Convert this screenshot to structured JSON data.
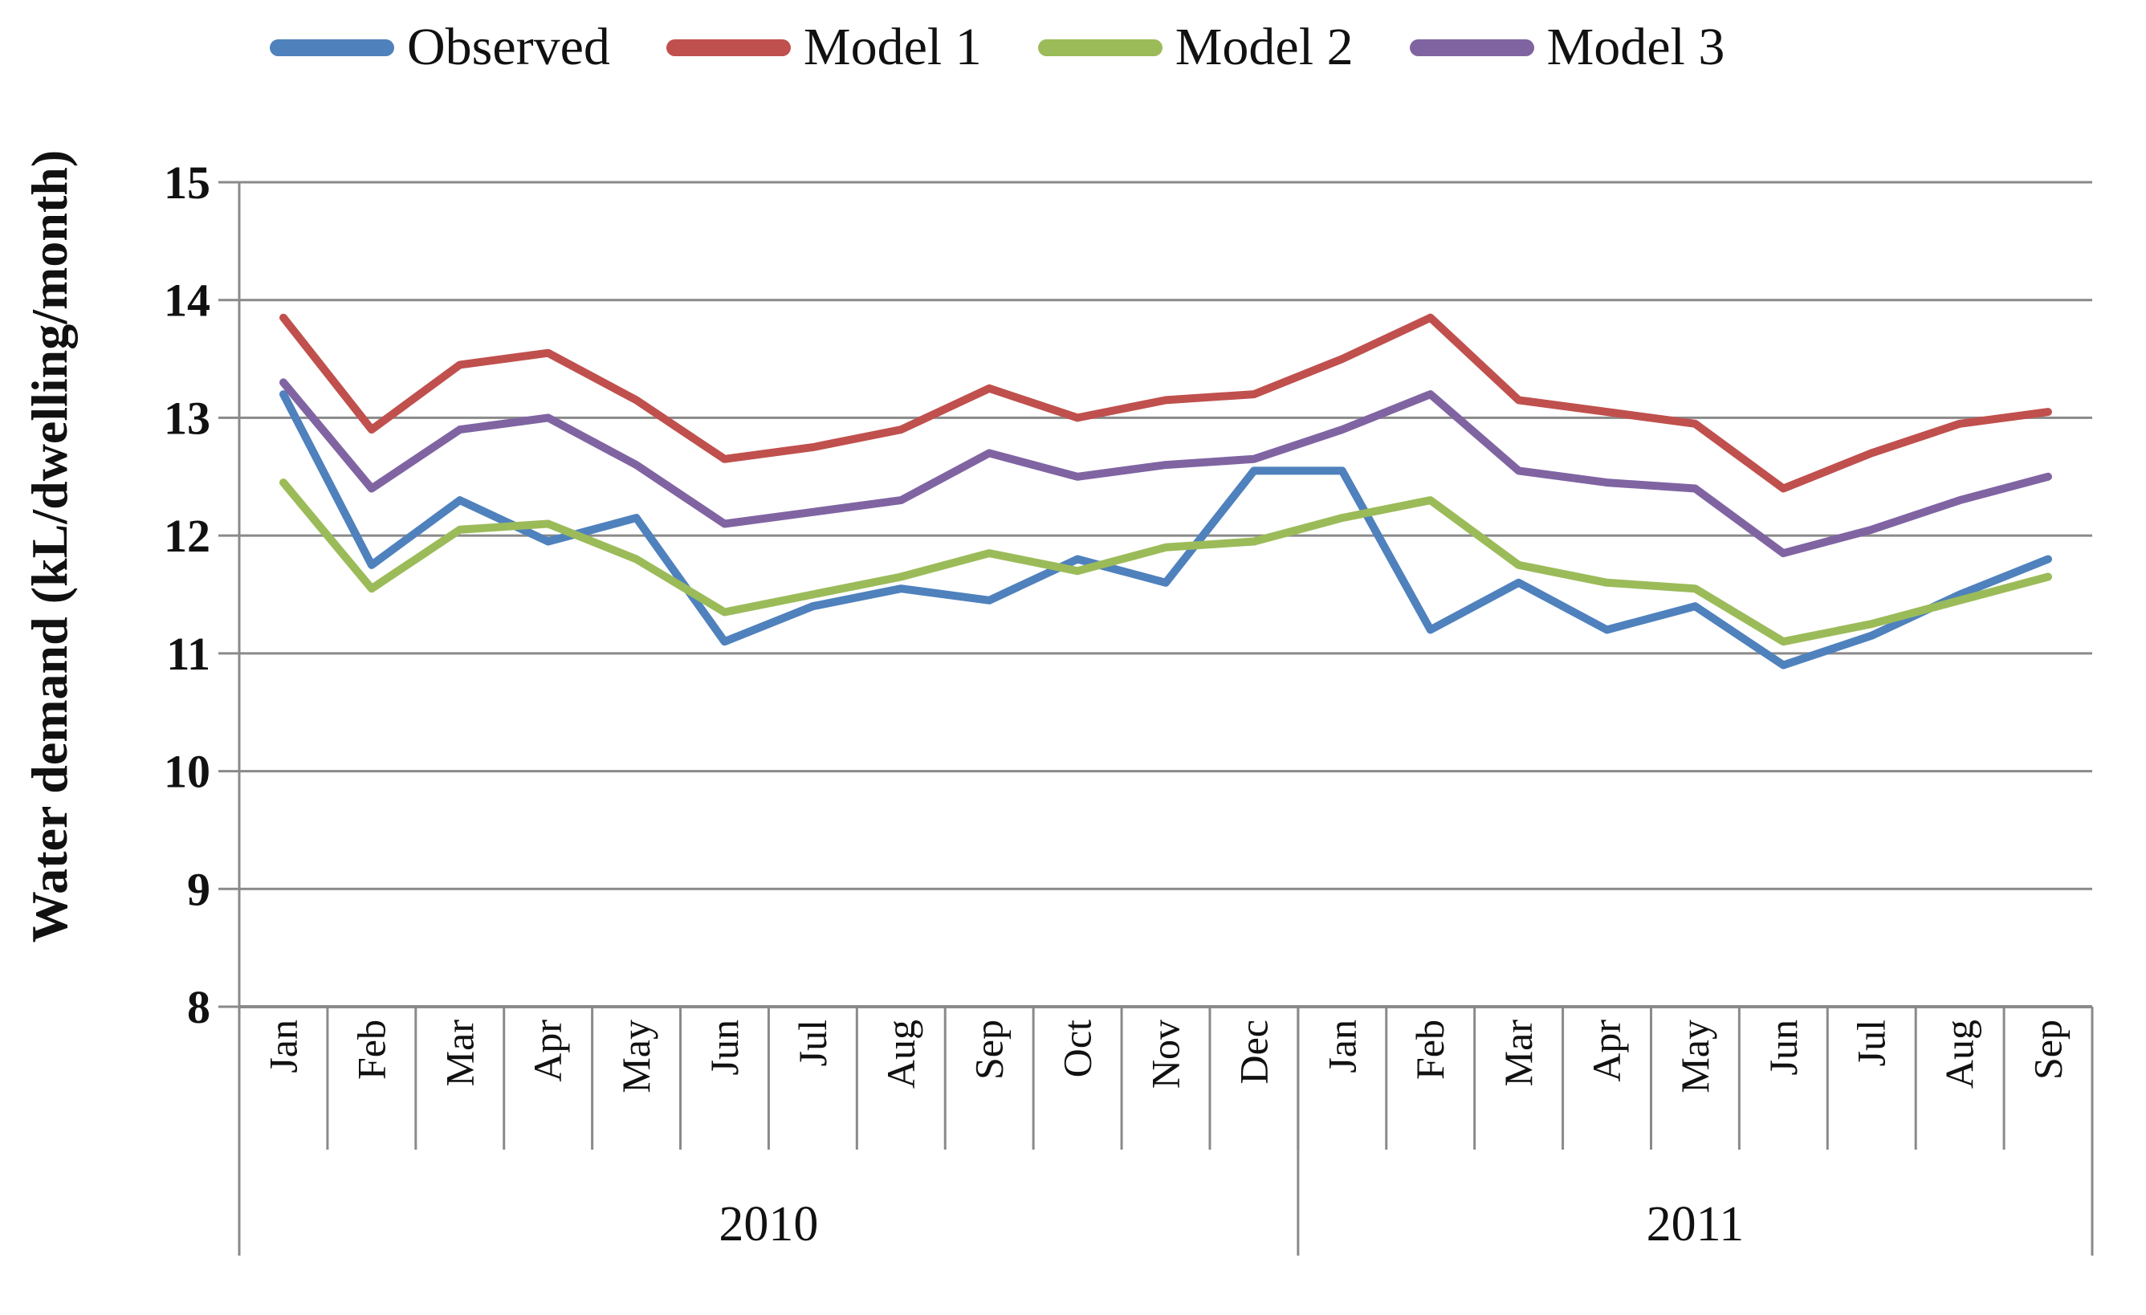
{
  "chart_data": {
    "type": "line",
    "title": "",
    "ylabel": "Water demand (kL/dwelling/month)",
    "xlabel": "",
    "ylim": [
      8,
      15
    ],
    "ytick_step": 1,
    "grid": "horizontal",
    "legend_position": "top",
    "categories": [
      "Jan",
      "Feb",
      "Mar",
      "Apr",
      "May",
      "Jun",
      "Jul",
      "Aug",
      "Sep",
      "Oct",
      "Nov",
      "Dec",
      "Jan",
      "Feb",
      "Mar",
      "Apr",
      "May",
      "Jun",
      "Jul",
      "Aug",
      "Sep"
    ],
    "year_groups": [
      {
        "label": "2010",
        "months": 12
      },
      {
        "label": "2011",
        "months": 9
      }
    ],
    "series": [
      {
        "name": "Observed",
        "color": "#4F81BD",
        "values": [
          13.2,
          11.75,
          12.3,
          11.95,
          12.15,
          11.1,
          11.4,
          11.55,
          11.45,
          11.8,
          11.6,
          12.55,
          12.55,
          11.2,
          11.6,
          11.2,
          11.4,
          10.9,
          11.15,
          11.5,
          11.8
        ]
      },
      {
        "name": "Model 1",
        "color": "#C0504D",
        "values": [
          13.85,
          12.9,
          13.45,
          13.55,
          13.15,
          12.65,
          12.75,
          12.9,
          13.25,
          13.0,
          13.15,
          13.2,
          13.5,
          13.85,
          13.15,
          13.05,
          12.95,
          12.4,
          12.7,
          12.95,
          13.05
        ]
      },
      {
        "name": "Model 2",
        "color": "#9BBB59",
        "values": [
          12.45,
          11.55,
          12.05,
          12.1,
          11.8,
          11.35,
          11.5,
          11.65,
          11.85,
          11.7,
          11.9,
          11.95,
          12.15,
          12.3,
          11.75,
          11.6,
          11.55,
          11.1,
          11.25,
          11.45,
          11.65
        ]
      },
      {
        "name": "Model 3",
        "color": "#8064A2",
        "values": [
          13.3,
          12.4,
          12.9,
          13.0,
          12.6,
          12.1,
          12.2,
          12.3,
          12.7,
          12.5,
          12.6,
          12.65,
          12.9,
          13.2,
          12.55,
          12.45,
          12.4,
          11.85,
          12.05,
          12.3,
          12.5
        ]
      }
    ],
    "axis_color": "#8a8a8a",
    "text_color": "#111111"
  }
}
